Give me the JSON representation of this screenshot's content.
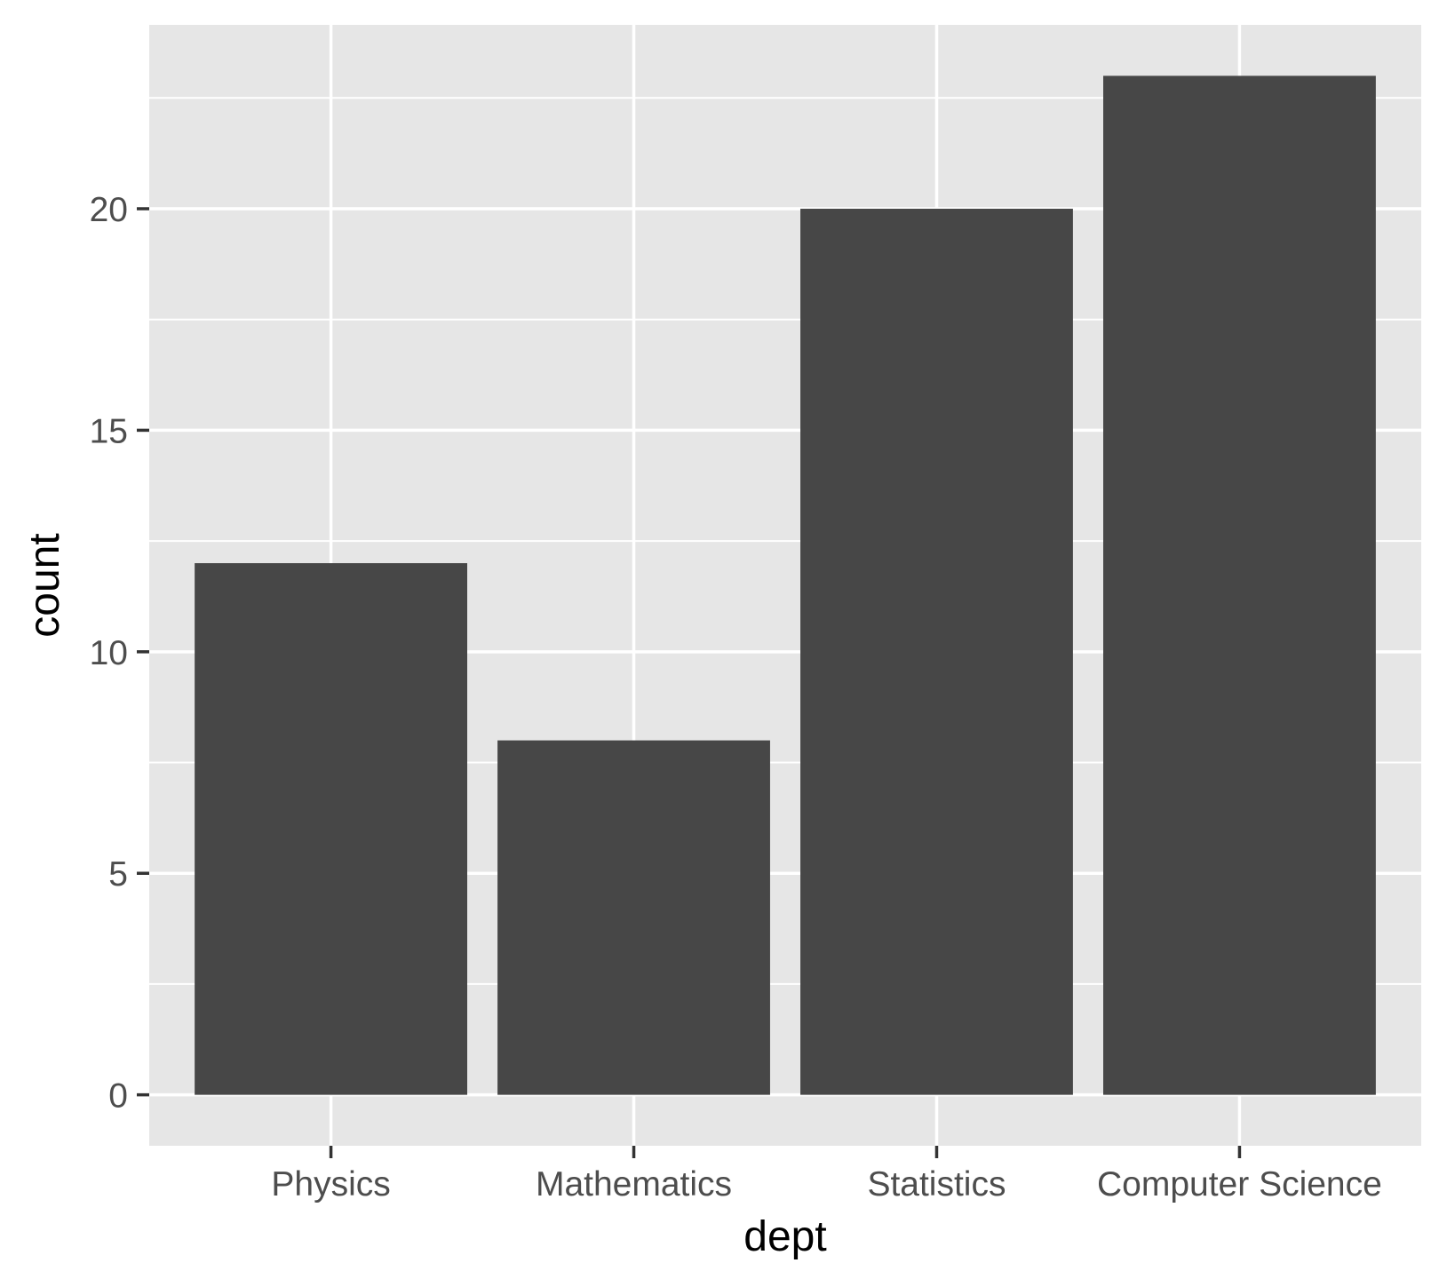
{
  "chart_data": {
    "type": "bar",
    "categories": [
      "Physics",
      "Mathematics",
      "Statistics",
      "Computer Science"
    ],
    "values": [
      12,
      8,
      20,
      23
    ],
    "xlabel": "dept",
    "ylabel": "count",
    "ylim": [
      -1.15,
      24.15
    ],
    "yticks": [
      0,
      5,
      10,
      15,
      20
    ],
    "ytick_labels": [
      "0",
      "5",
      "10",
      "15",
      "20"
    ],
    "grid": true,
    "legend": "none",
    "colors": {
      "bar": "#474747",
      "panel": "#e6e6e6",
      "grid": "#ffffff",
      "tick": "#333333"
    }
  }
}
